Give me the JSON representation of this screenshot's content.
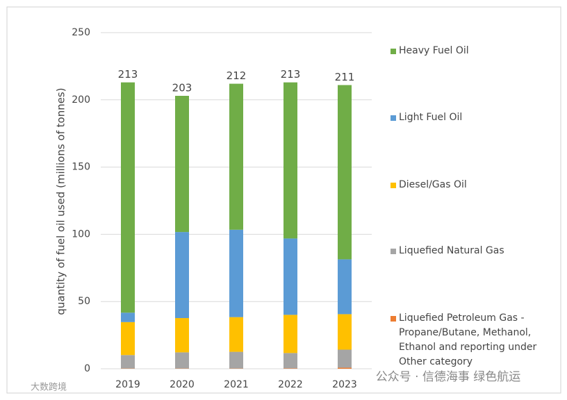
{
  "chart_data": {
    "type": "stacked_bar",
    "y_label": "quantity of fuel oil used (millions of tonnes)",
    "categories": [
      "2019",
      "2020",
      "2021",
      "2022",
      "2023"
    ],
    "series": [
      {
        "name": "Liquefied Petroleum Gas - Propane/Butane, Methanol, Ethanol and reporting under Other category",
        "color": "#ed7d31",
        "values": [
          0.2,
          0.2,
          0.2,
          0.3,
          0.8
        ]
      },
      {
        "name": "Liquefied Natural Gas",
        "color": "#a5a5a5",
        "values": [
          10,
          12,
          12.4,
          11.4,
          13.4
        ]
      },
      {
        "name": "Diesel/Gas Oil",
        "color": "#ffc000",
        "values": [
          24.5,
          25.5,
          25.8,
          28.4,
          26.4
        ]
      },
      {
        "name": "Light Fuel Oil",
        "color": "#5b9bd5",
        "values": [
          7,
          64,
          65,
          56.8,
          40.8
        ]
      },
      {
        "name": "Heavy Fuel Oil",
        "color": "#70ad47",
        "values": [
          171.3,
          101.3,
          108.6,
          116.1,
          129.6
        ]
      }
    ],
    "totals": [
      213,
      203,
      212,
      213,
      211
    ],
    "ylim": [
      0,
      250
    ],
    "yticks": [
      0,
      50,
      100,
      150,
      200,
      250
    ],
    "grid": true
  },
  "watermarks": [
    "公众号 · 信德海事 绿色航运",
    "大数跨境"
  ]
}
